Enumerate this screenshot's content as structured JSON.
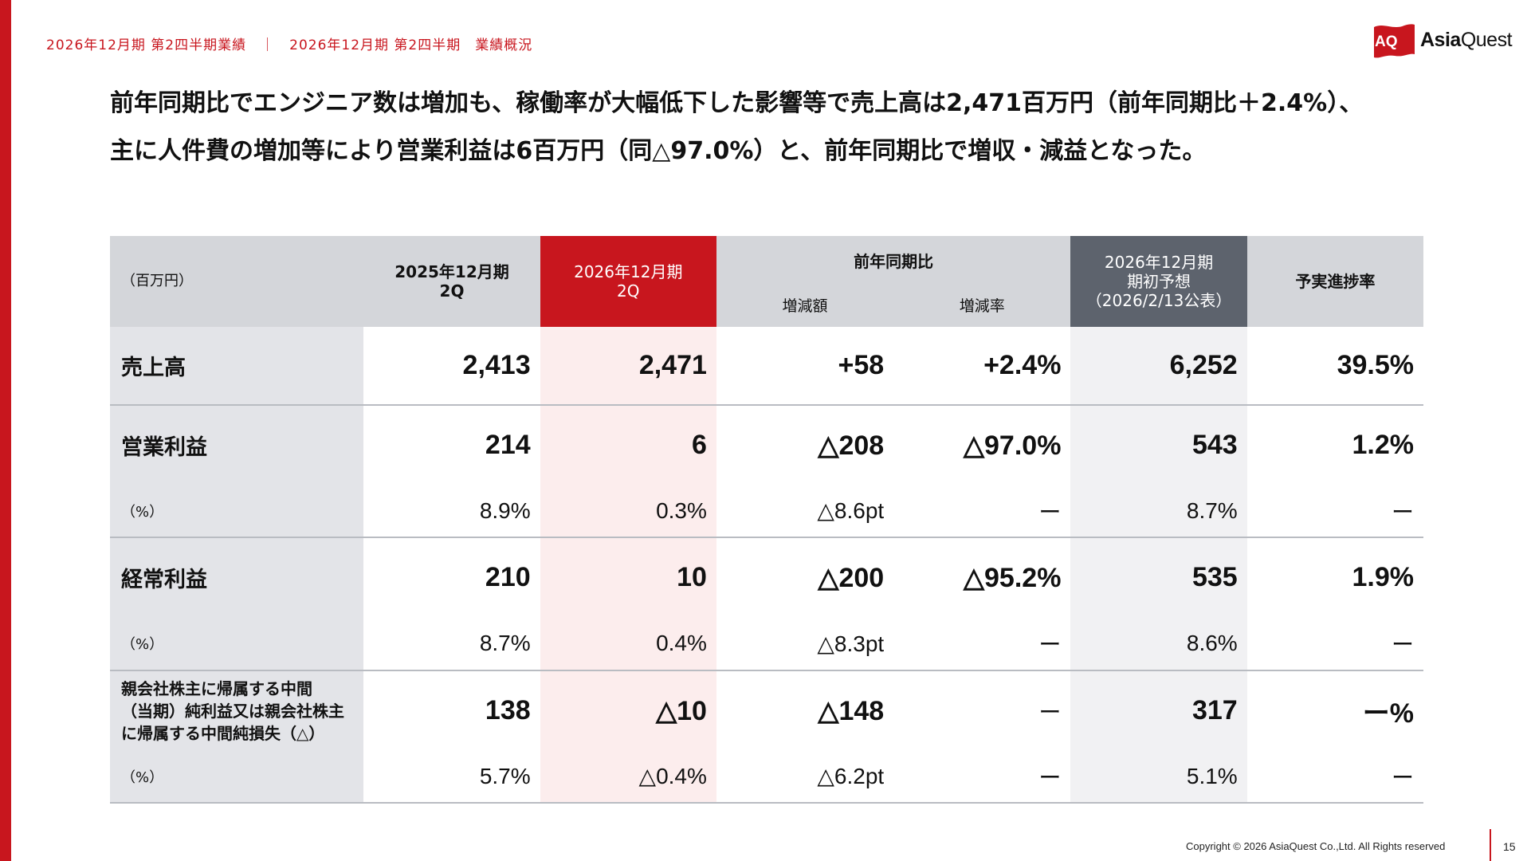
{
  "breadcrumb": {
    "left": "2026年12月期 第2四半期業績",
    "separator": "｜",
    "right": "2026年12月期 第2四半期　業績概況"
  },
  "logo": {
    "mark": "AQ",
    "text_bold": "Asia",
    "text_regular": "Quest",
    "icon": "aq-flag-logo",
    "color": "#c8161e"
  },
  "headline": {
    "line1": "前年同期比でエンジニア数は増加も、稼働率が大幅低下した影響等で売上高は2,471百万円（前年同期比＋2.4%）、",
    "line2": "主に人件費の増加等により営業利益は6百万円（同△97.0%）と、前年同期比で増収・減益となった。"
  },
  "table": {
    "unit": "（百万円）",
    "headers": {
      "prev_line1": "2025年12月期",
      "prev_line2": "2Q",
      "cur_line1": "2026年12月期",
      "cur_line2": "2Q",
      "yoy": "前年同期比",
      "yoy_amount": "増減額",
      "yoy_rate": "増減率",
      "forecast_line1": "2026年12月期",
      "forecast_line2": "期初予想",
      "forecast_line3": "（2026/2/13公表）",
      "progress": "予実進捗率"
    },
    "rows": [
      {
        "label": "売上高",
        "prev": "2,413",
        "cur": "2,471",
        "amount": "+58",
        "rate": "+2.4%",
        "forecast": "6,252",
        "progress": "39.5%"
      },
      {
        "label": "営業利益",
        "prev": "214",
        "cur": "6",
        "amount": "△208",
        "rate": "△97.0%",
        "forecast": "543",
        "progress": "1.2%"
      },
      {
        "label": "（%）",
        "prev": "8.9%",
        "cur": "0.3%",
        "amount": "△8.6pt",
        "rate": "ー",
        "forecast": "8.7%",
        "progress": "ー"
      },
      {
        "label": "経常利益",
        "prev": "210",
        "cur": "10",
        "amount": "△200",
        "rate": "△95.2%",
        "forecast": "535",
        "progress": "1.9%"
      },
      {
        "label": "（%）",
        "prev": "8.7%",
        "cur": "0.4%",
        "amount": "△8.3pt",
        "rate": "ー",
        "forecast": "8.6%",
        "progress": "ー"
      },
      {
        "label_line1": "親会社株主に帰属する中間",
        "label_line2": "（当期）純利益又は親会社株主",
        "label_line3": "に帰属する中間純損失（△）",
        "prev": "138",
        "cur": "△10",
        "amount": "△148",
        "rate": "ー",
        "forecast": "317",
        "progress": "ー%"
      },
      {
        "label": "（%）",
        "prev": "5.7%",
        "cur": "△0.4%",
        "amount": "△6.2pt",
        "rate": "ー",
        "forecast": "5.1%",
        "progress": "ー"
      }
    ]
  },
  "footer": {
    "copyright": "Copyright © 2026 AsiaQuest Co.,Ltd. All Rights reserved",
    "page": "15"
  }
}
